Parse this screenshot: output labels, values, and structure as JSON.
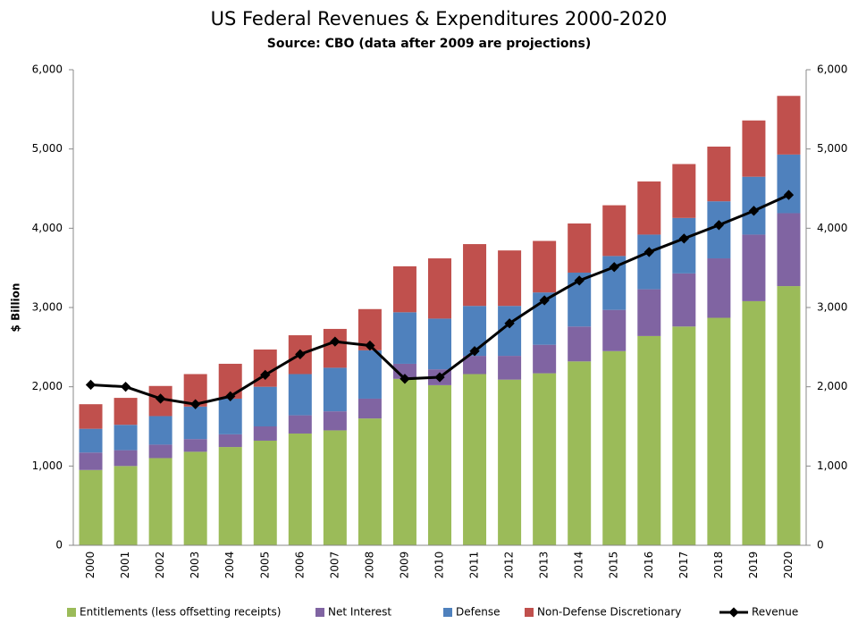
{
  "chart_data": {
    "type": "stacked_bar_line",
    "title": "US Federal Revenues & Expenditures 2000-2020",
    "subtitle": "Source:  CBO (data after 2009 are projections)",
    "y_label": "$ Billion",
    "categories": [
      "2000",
      "2001",
      "2002",
      "2003",
      "2004",
      "2005",
      "2006",
      "2007",
      "2008",
      "2009",
      "2010",
      "2011",
      "2012",
      "2013",
      "2014",
      "2015",
      "2016",
      "2017",
      "2018",
      "2019",
      "2020"
    ],
    "series": [
      {
        "name": "Entitlements (less offsetting receipts)",
        "color": "#9bbb59",
        "kind": "bar",
        "values": [
          950,
          1000,
          1100,
          1180,
          1240,
          1320,
          1410,
          1450,
          1600,
          2100,
          2020,
          2160,
          2090,
          2170,
          2320,
          2450,
          2640,
          2760,
          2870,
          3080,
          3270
        ]
      },
      {
        "name": "Net Interest",
        "color": "#8064a2",
        "kind": "bar",
        "values": [
          220,
          200,
          170,
          160,
          160,
          180,
          230,
          240,
          250,
          190,
          200,
          230,
          300,
          360,
          440,
          520,
          590,
          670,
          750,
          840,
          920
        ]
      },
      {
        "name": "Defense",
        "color": "#4f81bd",
        "kind": "bar",
        "values": [
          300,
          320,
          360,
          410,
          450,
          500,
          520,
          550,
          610,
          650,
          640,
          630,
          630,
          660,
          680,
          680,
          690,
          700,
          720,
          730,
          740
        ]
      },
      {
        "name": "Non-Defense Discretionary",
        "color": "#c0504d",
        "kind": "bar",
        "values": [
          310,
          340,
          380,
          410,
          440,
          470,
          490,
          490,
          520,
          580,
          760,
          780,
          700,
          650,
          620,
          640,
          670,
          680,
          690,
          710,
          740
        ]
      },
      {
        "name": "Revenue",
        "color": "#000000",
        "kind": "line",
        "values": [
          2025,
          2000,
          1850,
          1780,
          1880,
          2150,
          2410,
          2570,
          2520,
          2100,
          2120,
          2450,
          2800,
          3090,
          3340,
          3510,
          3700,
          3870,
          4040,
          4220,
          4420
        ]
      }
    ],
    "ylim": [
      0,
      6000
    ],
    "yticks": [
      0,
      {
        "value": 1000,
        "label": "1,000"
      },
      {
        "value": 2000,
        "label": "2,000"
      },
      {
        "value": 3000,
        "label": "3,000"
      },
      {
        "value": 4000,
        "label": "4,000"
      },
      {
        "value": 5000,
        "label": "5,000"
      },
      {
        "value": 6000,
        "label": "6,000"
      }
    ],
    "y2lim": [
      0,
      6000
    ],
    "y2ticks": [
      0,
      {
        "value": 1000,
        "label": "1,000"
      },
      {
        "value": 2000,
        "label": "2,000"
      },
      {
        "value": 3000,
        "label": "3,000"
      },
      {
        "value": 4000,
        "label": "4,000"
      },
      {
        "value": 5000,
        "label": "5,000"
      },
      {
        "value": 6000,
        "label": "6,000"
      }
    ],
    "legend": "bottom"
  }
}
